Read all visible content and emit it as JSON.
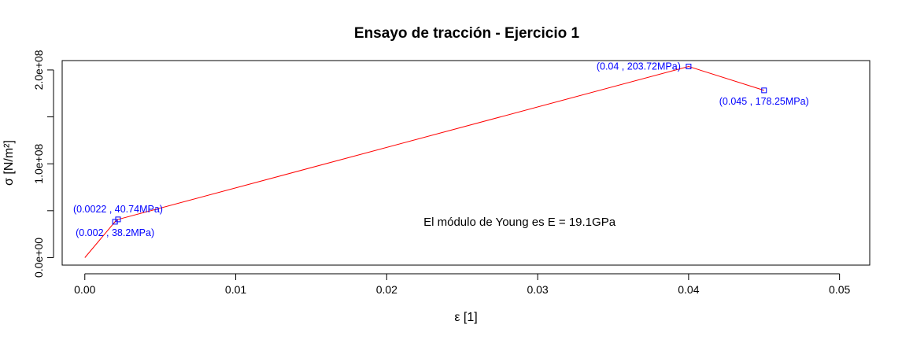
{
  "chart_data": {
    "type": "line",
    "title": "Ensayo de tracción - Ejercicio 1",
    "xlabel": "ε [1]",
    "ylabel": "σ [N/m²]",
    "xlim": [
      -0.0015,
      0.052
    ],
    "ylim": [
      -8000000,
      210000000
    ],
    "x_ticks": [
      {
        "value": 0.0,
        "label": "0.00"
      },
      {
        "value": 0.01,
        "label": "0.01"
      },
      {
        "value": 0.02,
        "label": "0.02"
      },
      {
        "value": 0.03,
        "label": "0.03"
      },
      {
        "value": 0.04,
        "label": "0.04"
      },
      {
        "value": 0.05,
        "label": "0.05"
      }
    ],
    "y_ticks": [
      {
        "value": 0,
        "label": "0.0e+00"
      },
      {
        "value": 50000000,
        "label": ""
      },
      {
        "value": 100000000,
        "label": "1.0e+08"
      },
      {
        "value": 150000000,
        "label": ""
      },
      {
        "value": 200000000,
        "label": "2.0e+08"
      }
    ],
    "series": [
      {
        "color": "#ff0000",
        "x": [
          0,
          0.002,
          0.0022,
          0.04,
          0.045
        ],
        "y": [
          0,
          38200000,
          40740000,
          203720000,
          178250000
        ]
      }
    ],
    "points": [
      {
        "x": 0.002,
        "y": 38200000,
        "label": "(0.002 , 38.2MPa)",
        "pos": "below"
      },
      {
        "x": 0.0022,
        "y": 40740000,
        "label": "(0.0022 , 40.74MPa)",
        "pos": "above"
      },
      {
        "x": 0.04,
        "y": 203720000,
        "label": "(0.04 , 203.72MPa)",
        "pos": "left"
      },
      {
        "x": 0.045,
        "y": 178250000,
        "label": "(0.045 , 178.25MPa)",
        "pos": "below"
      }
    ],
    "point_marker_color": "#0000ff",
    "point_label_color": "#0000ff",
    "annotation": {
      "x": 0.0288,
      "y": 38200000,
      "text": "El módulo de Young es E = 19.1GPa"
    }
  }
}
